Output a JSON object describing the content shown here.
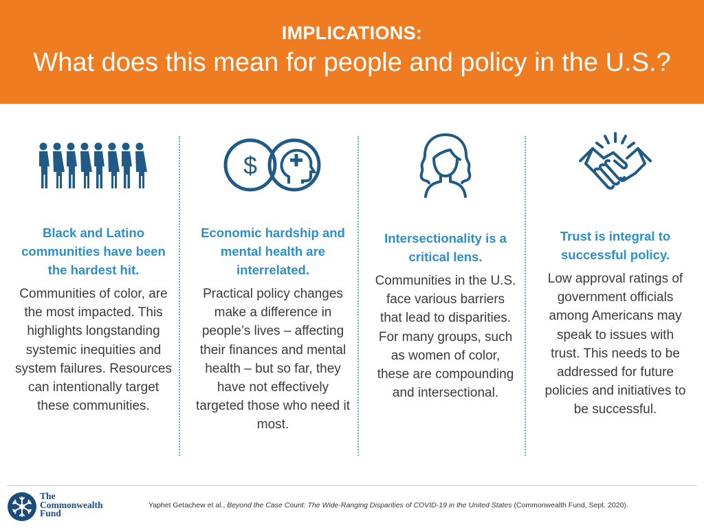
{
  "header": {
    "kicker": "IMPLICATIONS:",
    "title": "What does this mean for people and policy in the U.S.?",
    "background": "#f07c22"
  },
  "columns": [
    {
      "icon": "people-group-icon",
      "heading": "Black and Latino communities have been the hardest hit.",
      "body": "Communities of color, are the most impacted. This highlights longstanding systemic inequities and system failures. Resources can intentionally target these communities."
    },
    {
      "icon": "money-mind-icon",
      "heading": "Economic hardship and mental health are interrelated.",
      "body": "Practical policy changes make a difference in people’s lives – affecting their finances and mental health – but so far, they have not effectively targeted those who need it most."
    },
    {
      "icon": "woman-portrait-icon",
      "heading": "Intersectionality is a critical lens.",
      "body": "Communities in the U.S. face various barriers that lead to disparities. For many groups, such as women of color, these are compounding and intersectional."
    },
    {
      "icon": "handshake-icon",
      "heading": "Trust is integral to successful policy.",
      "body": "Low approval ratings of government officials among Americans may speak to issues with trust. This needs to be addressed for future policies and initiatives to be successful."
    }
  ],
  "colors": {
    "heading": "#2b8fc8",
    "icon": "#1f5b86",
    "divider": "#4dbfb3",
    "body_text": "#3a3a3a"
  },
  "footer": {
    "logo_line1": "The",
    "logo_line2": "Commonwealth",
    "logo_line3": "Fund",
    "citation_authors": "Yaphet Getachew et al.,",
    "citation_title": "Beyond the Case Count: The Wide-Ranging Disparities of COVID-19 in the United States",
    "citation_source": "(Commonwealth Fund, Sept. 2020)."
  }
}
